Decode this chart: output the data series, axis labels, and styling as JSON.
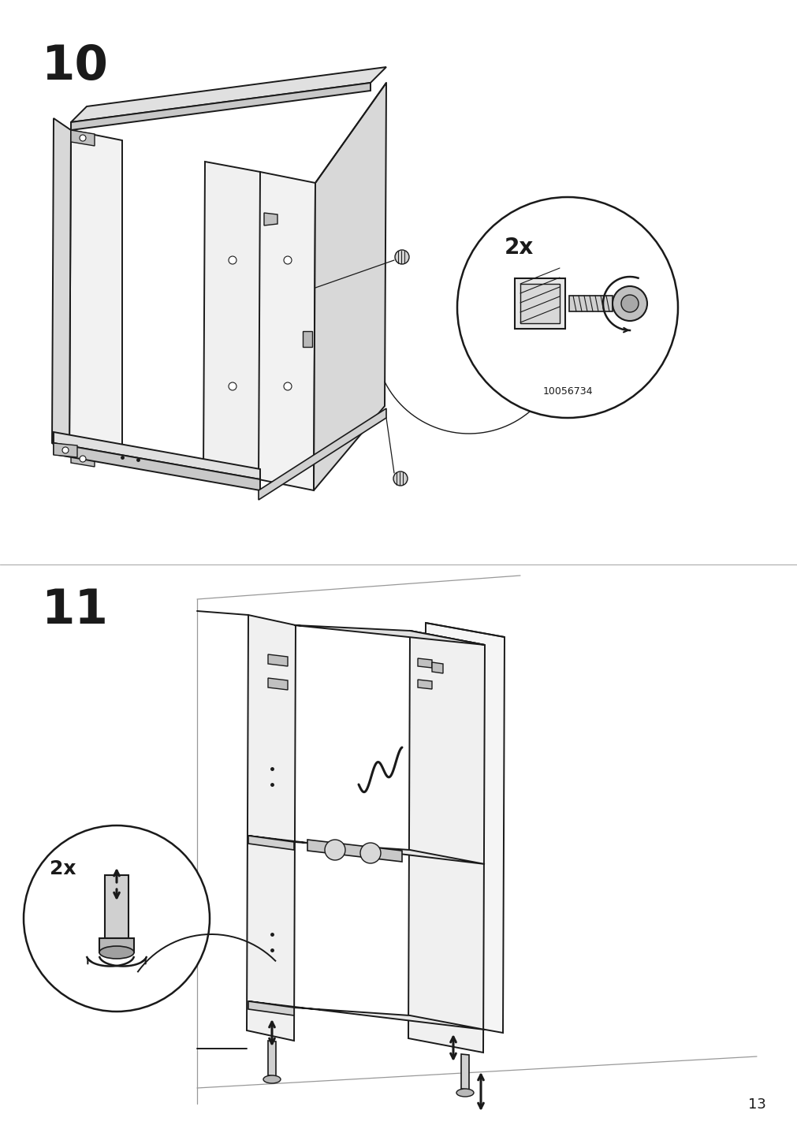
{
  "step10_label": "10",
  "step11_label": "11",
  "page_number": "13",
  "mult1": "2x",
  "mult2": "2x",
  "part_number": "10056734",
  "bg_color": "#ffffff",
  "lc": "#1a1a1a",
  "gray1": "#f2f2f2",
  "gray2": "#e0e0e0",
  "gray3": "#c8c8c8",
  "gray4": "#b0b0b0"
}
